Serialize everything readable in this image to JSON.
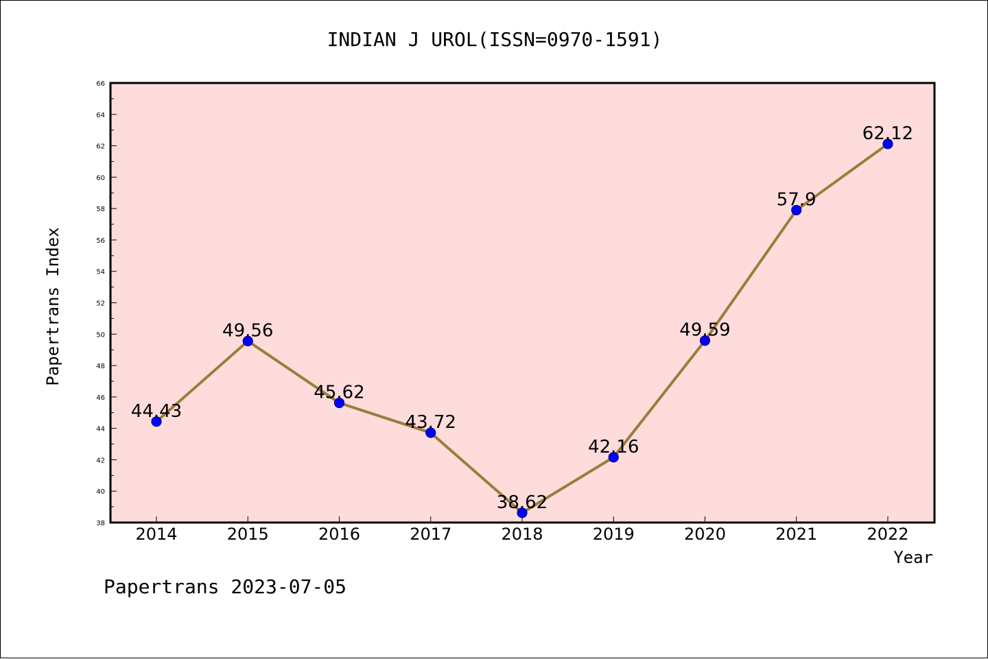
{
  "chart_data": {
    "type": "line",
    "title": "INDIAN J UROL(ISSN=0970-1591)",
    "xlabel": "Year",
    "ylabel": "Papertrans Index",
    "footer": "Papertrans 2023-07-05",
    "categories": [
      "2014",
      "2015",
      "2016",
      "2017",
      "2018",
      "2019",
      "2020",
      "2021",
      "2022"
    ],
    "series": [
      {
        "values": [
          44.43,
          49.56,
          45.62,
          43.72,
          38.62,
          42.16,
          49.59,
          57.9,
          62.12
        ],
        "labels": [
          "44.43",
          "49.56",
          "45.62",
          "43.72",
          "38.62",
          "42.16",
          "49.59",
          "57.9",
          "62.12"
        ]
      }
    ],
    "ylim": [
      38,
      66
    ],
    "yticks": [
      38,
      40,
      42,
      44,
      46,
      48,
      50,
      52,
      54,
      56,
      58,
      60,
      62,
      64,
      66
    ],
    "grid": false,
    "colors": {
      "plot_background": "#ffdcdc",
      "line": "#9a7e3a",
      "marker_fill": "#0000ff",
      "marker_edge": "#00008b"
    }
  }
}
